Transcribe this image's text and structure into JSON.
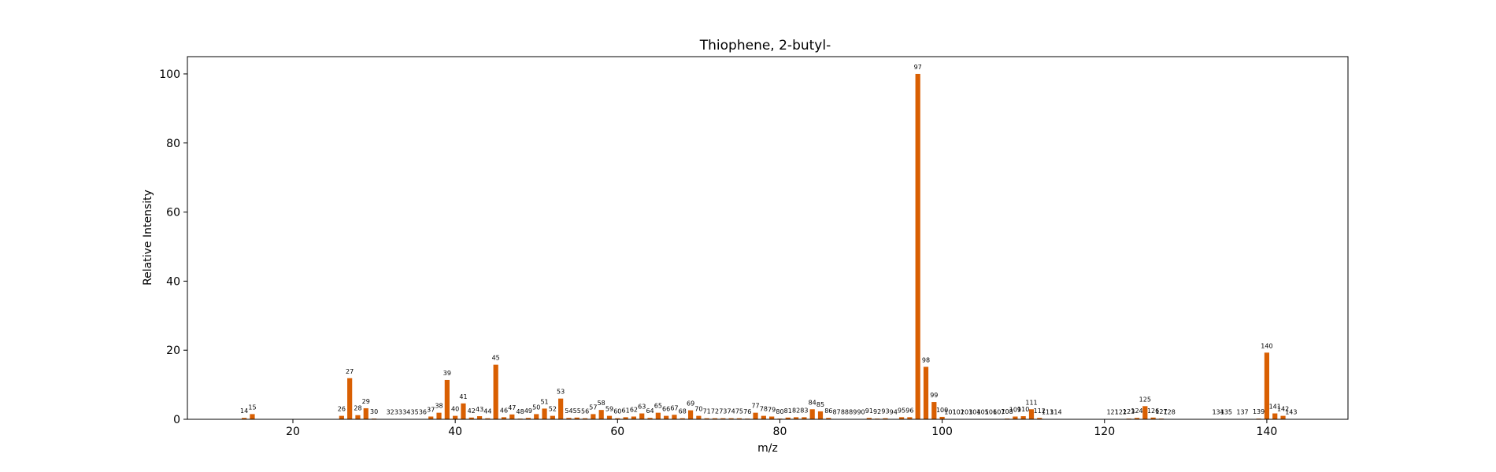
{
  "chart_data": {
    "type": "bar",
    "title": "Thiophene, 2-butyl-",
    "xlabel": "m/z",
    "ylabel": "Relative Intensity",
    "xlim": [
      7,
      150
    ],
    "ylim": [
      0,
      105
    ],
    "xticks": [
      20,
      40,
      60,
      80,
      100,
      120,
      140
    ],
    "yticks": [
      0,
      20,
      40,
      60,
      80,
      100
    ],
    "bar_color": "#d95f02",
    "grid": false,
    "points": [
      {
        "mz": 14,
        "intensity": 0.4
      },
      {
        "mz": 15,
        "intensity": 1.5
      },
      {
        "mz": 26,
        "intensity": 1.0
      },
      {
        "mz": 27,
        "intensity": 11.9
      },
      {
        "mz": 28,
        "intensity": 1.2
      },
      {
        "mz": 29,
        "intensity": 3.2
      },
      {
        "mz": 30,
        "intensity": 0.2
      },
      {
        "mz": 32,
        "intensity": 0.1
      },
      {
        "mz": 33,
        "intensity": 0.1
      },
      {
        "mz": 34,
        "intensity": 0.1
      },
      {
        "mz": 35,
        "intensity": 0.1
      },
      {
        "mz": 36,
        "intensity": 0.1
      },
      {
        "mz": 37,
        "intensity": 0.8
      },
      {
        "mz": 38,
        "intensity": 1.9
      },
      {
        "mz": 39,
        "intensity": 11.4
      },
      {
        "mz": 40,
        "intensity": 1.0
      },
      {
        "mz": 41,
        "intensity": 4.6
      },
      {
        "mz": 42,
        "intensity": 0.5
      },
      {
        "mz": 43,
        "intensity": 0.9
      },
      {
        "mz": 44,
        "intensity": 0.3
      },
      {
        "mz": 45,
        "intensity": 15.8
      },
      {
        "mz": 46,
        "intensity": 0.6
      },
      {
        "mz": 47,
        "intensity": 1.4
      },
      {
        "mz": 48,
        "intensity": 0.2
      },
      {
        "mz": 49,
        "intensity": 0.4
      },
      {
        "mz": 50,
        "intensity": 1.5
      },
      {
        "mz": 51,
        "intensity": 3.1
      },
      {
        "mz": 52,
        "intensity": 1.0
      },
      {
        "mz": 53,
        "intensity": 6.0
      },
      {
        "mz": 54,
        "intensity": 0.4
      },
      {
        "mz": 55,
        "intensity": 0.5
      },
      {
        "mz": 56,
        "intensity": 0.3
      },
      {
        "mz": 57,
        "intensity": 1.5
      },
      {
        "mz": 58,
        "intensity": 2.7
      },
      {
        "mz": 59,
        "intensity": 1.0
      },
      {
        "mz": 60,
        "intensity": 0.3
      },
      {
        "mz": 61,
        "intensity": 0.6
      },
      {
        "mz": 62,
        "intensity": 0.8
      },
      {
        "mz": 63,
        "intensity": 1.7
      },
      {
        "mz": 64,
        "intensity": 0.4
      },
      {
        "mz": 65,
        "intensity": 1.9
      },
      {
        "mz": 66,
        "intensity": 1.0
      },
      {
        "mz": 67,
        "intensity": 1.3
      },
      {
        "mz": 68,
        "intensity": 0.3
      },
      {
        "mz": 69,
        "intensity": 2.6
      },
      {
        "mz": 70,
        "intensity": 1.0
      },
      {
        "mz": 71,
        "intensity": 0.3
      },
      {
        "mz": 72,
        "intensity": 0.3
      },
      {
        "mz": 73,
        "intensity": 0.3
      },
      {
        "mz": 74,
        "intensity": 0.3
      },
      {
        "mz": 75,
        "intensity": 0.3
      },
      {
        "mz": 76,
        "intensity": 0.2
      },
      {
        "mz": 77,
        "intensity": 1.9
      },
      {
        "mz": 78,
        "intensity": 1.0
      },
      {
        "mz": 79,
        "intensity": 0.8
      },
      {
        "mz": 80,
        "intensity": 0.2
      },
      {
        "mz": 81,
        "intensity": 0.5
      },
      {
        "mz": 82,
        "intensity": 0.6
      },
      {
        "mz": 83,
        "intensity": 0.6
      },
      {
        "mz": 84,
        "intensity": 2.9
      },
      {
        "mz": 85,
        "intensity": 2.3
      },
      {
        "mz": 86,
        "intensity": 0.4
      },
      {
        "mz": 87,
        "intensity": 0.1
      },
      {
        "mz": 88,
        "intensity": 0.1
      },
      {
        "mz": 89,
        "intensity": 0.1
      },
      {
        "mz": 90,
        "intensity": 0.1
      },
      {
        "mz": 91,
        "intensity": 0.4
      },
      {
        "mz": 92,
        "intensity": 0.2
      },
      {
        "mz": 93,
        "intensity": 0.3
      },
      {
        "mz": 94,
        "intensity": 0.1
      },
      {
        "mz": 95,
        "intensity": 0.6
      },
      {
        "mz": 96,
        "intensity": 0.6
      },
      {
        "mz": 97,
        "intensity": 100
      },
      {
        "mz": 98,
        "intensity": 15.2
      },
      {
        "mz": 99,
        "intensity": 5.0
      },
      {
        "mz": 100,
        "intensity": 0.7
      },
      {
        "mz": 101,
        "intensity": 0.1
      },
      {
        "mz": 102,
        "intensity": 0.1
      },
      {
        "mz": 103,
        "intensity": 0.1
      },
      {
        "mz": 104,
        "intensity": 0.1
      },
      {
        "mz": 105,
        "intensity": 0.1
      },
      {
        "mz": 106,
        "intensity": 0.1
      },
      {
        "mz": 107,
        "intensity": 0.1
      },
      {
        "mz": 108,
        "intensity": 0.2
      },
      {
        "mz": 109,
        "intensity": 0.8
      },
      {
        "mz": 110,
        "intensity": 0.9
      },
      {
        "mz": 111,
        "intensity": 2.9
      },
      {
        "mz": 112,
        "intensity": 0.4
      },
      {
        "mz": 113,
        "intensity": 0.1
      },
      {
        "mz": 114,
        "intensity": 0.1
      },
      {
        "mz": 121,
        "intensity": 0.1
      },
      {
        "mz": 122,
        "intensity": 0.1
      },
      {
        "mz": 123,
        "intensity": 0.2
      },
      {
        "mz": 124,
        "intensity": 0.4
      },
      {
        "mz": 125,
        "intensity": 3.8
      },
      {
        "mz": 126,
        "intensity": 0.5
      },
      {
        "mz": 127,
        "intensity": 0.2
      },
      {
        "mz": 128,
        "intensity": 0.1
      },
      {
        "mz": 134,
        "intensity": 0.1
      },
      {
        "mz": 135,
        "intensity": 0.1
      },
      {
        "mz": 137,
        "intensity": 0.1
      },
      {
        "mz": 139,
        "intensity": 0.2
      },
      {
        "mz": 140,
        "intensity": 19.3
      },
      {
        "mz": 141,
        "intensity": 1.7
      },
      {
        "mz": 142,
        "intensity": 1.0
      },
      {
        "mz": 143,
        "intensity": 0.1
      }
    ]
  }
}
